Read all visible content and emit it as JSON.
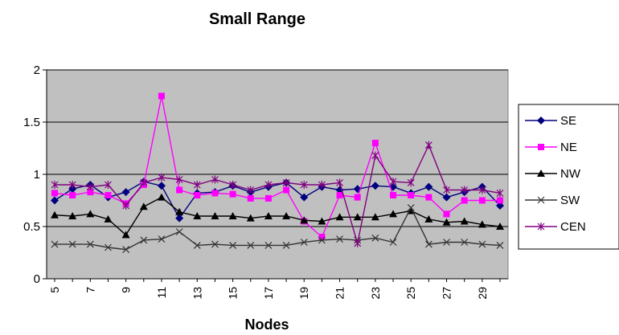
{
  "chart_data": {
    "type": "line",
    "title": "Small Range",
    "xlabel": "Nodes",
    "ylabel": "",
    "ylim": [
      0,
      2
    ],
    "yticks": [
      "0",
      "0.5",
      "1",
      "1.5",
      "2"
    ],
    "x": [
      5,
      6,
      7,
      8,
      9,
      10,
      11,
      12,
      13,
      14,
      15,
      16,
      17,
      18,
      19,
      20,
      21,
      22,
      23,
      24,
      25,
      26,
      27,
      28,
      29,
      30
    ],
    "xtick_labels": [
      "5",
      "7",
      "9",
      "11",
      "13",
      "15",
      "17",
      "19",
      "21",
      "23",
      "25",
      "27",
      "29"
    ],
    "grid": "horizontal",
    "plot_background": "#c0c0c0",
    "legend_position": "right",
    "series": [
      {
        "name": "SE",
        "color": "#000080",
        "marker": "diamond",
        "values": [
          0.75,
          0.86,
          0.9,
          0.78,
          0.83,
          0.93,
          0.89,
          0.58,
          0.82,
          0.83,
          0.89,
          0.83,
          0.88,
          0.92,
          0.78,
          0.88,
          0.85,
          0.86,
          0.89,
          0.88,
          0.82,
          0.88,
          0.78,
          0.83,
          0.88,
          0.7
        ]
      },
      {
        "name": "NE",
        "color": "#ff00ff",
        "marker": "square",
        "values": [
          0.82,
          0.8,
          0.83,
          0.8,
          0.72,
          0.9,
          1.75,
          0.85,
          0.8,
          0.82,
          0.81,
          0.77,
          0.77,
          0.85,
          0.55,
          0.4,
          0.8,
          0.78,
          1.3,
          0.8,
          0.8,
          0.78,
          0.62,
          0.75,
          0.75,
          0.75
        ]
      },
      {
        "name": "NW",
        "color": "#000000",
        "marker": "triangle",
        "values": [
          0.61,
          0.6,
          0.62,
          0.57,
          0.42,
          0.69,
          0.78,
          0.64,
          0.6,
          0.6,
          0.6,
          0.58,
          0.6,
          0.6,
          0.56,
          0.55,
          0.59,
          0.59,
          0.59,
          0.62,
          0.65,
          0.57,
          0.54,
          0.55,
          0.52,
          0.5
        ]
      },
      {
        "name": "SW",
        "color": "#333333",
        "marker": "x",
        "values": [
          0.33,
          0.33,
          0.33,
          0.3,
          0.28,
          0.37,
          0.38,
          0.45,
          0.32,
          0.33,
          0.32,
          0.32,
          0.32,
          0.32,
          0.35,
          0.37,
          0.38,
          0.37,
          0.39,
          0.35,
          0.68,
          0.33,
          0.35,
          0.35,
          0.33,
          0.32
        ]
      },
      {
        "name": "CEN",
        "color": "#800080",
        "marker": "star",
        "values": [
          0.9,
          0.9,
          0.88,
          0.9,
          0.7,
          0.92,
          0.97,
          0.95,
          0.9,
          0.95,
          0.9,
          0.85,
          0.9,
          0.92,
          0.9,
          0.9,
          0.92,
          0.34,
          1.18,
          0.93,
          0.92,
          1.28,
          0.85,
          0.85,
          0.85,
          0.82
        ]
      }
    ]
  }
}
